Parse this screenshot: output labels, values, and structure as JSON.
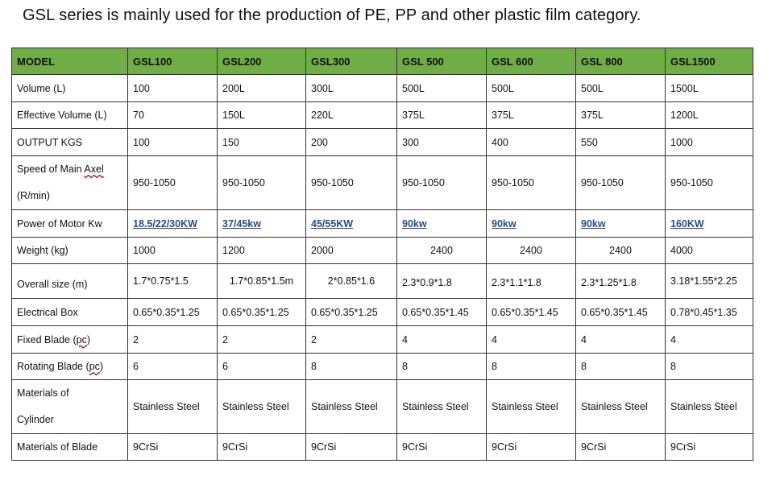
{
  "title": "GSL series is mainly used for the production of PE, PP and other plastic film category.",
  "table": {
    "headers": [
      "MODEL",
      "GSL100",
      "GSL200",
      "GSL300",
      "GSL 500",
      "GSL 600",
      "GSL 800",
      "GSL1500"
    ],
    "rows": [
      {
        "label": "Volume (L)",
        "values": [
          "100",
          "200L",
          "300L",
          "500L",
          "500L",
          "500L",
          "1500L"
        ]
      },
      {
        "label": "Effective Volume (L)",
        "values": [
          "70",
          "150L",
          "220L",
          "375L",
          "375L",
          "375L",
          "1200L"
        ]
      },
      {
        "label": "OUTPUT KGS",
        "values": [
          "100",
          "150",
          "200",
          "300",
          "400",
          "550",
          "1000"
        ]
      },
      {
        "label_pre": "Speed of Main ",
        "label_wavy": "Axel",
        "label_line2": "(R/min)",
        "values": [
          "950-1050",
          "950-1050",
          "950-1050",
          "950-1050",
          "950-1050",
          "950-1050",
          "950-1050"
        ]
      },
      {
        "label": "Power of Motor Kw",
        "values": [
          "18.5/22/30KW",
          "37/45kw",
          "45/55KW",
          "90kw",
          "90kw",
          "90kw",
          "160KW"
        ]
      },
      {
        "label": "Weight (kg)",
        "values": [
          "1000",
          "1200",
          "2000",
          "2400",
          "2400",
          "2400",
          "4000"
        ]
      },
      {
        "label": "Overall size (m)",
        "values": [
          "1.7*0.75*1.5",
          "1.7*0.85*1.5m",
          "2*0.85*1.6",
          "2.3*0.9*1.8",
          "2.3*1.1*1.8",
          "2.3*1.25*1.8",
          "3.18*1.55*2.25"
        ]
      },
      {
        "label": "Electrical Box",
        "values": [
          "0.65*0.35*1.25",
          "0.65*0.35*1.25",
          "0.65*0.35*1.25",
          "0.65*0.35*1.45",
          "0.65*0.35*1.45",
          "0.65*0.35*1.45",
          "0.78*0.45*1.35"
        ]
      },
      {
        "label_pre": "Fixed Blade (",
        "label_wavy": "pc",
        "label_post": ")",
        "values": [
          "2",
          "2",
          "2",
          "4",
          "4",
          "4",
          "4"
        ]
      },
      {
        "label_pre": "Rotating Blade (",
        "label_wavy": "pc",
        "label_post": ")",
        "values": [
          "6",
          "6",
          "8",
          "8",
          "8",
          "8",
          "8"
        ]
      },
      {
        "label": "Materials of",
        "label_line2": "Cylinder",
        "values": [
          "Stainless Steel",
          "Stainless Steel",
          "Stainless Steel",
          "Stainless Steel",
          "Stainless Steel",
          "Stainless Steel",
          "Stainless Steel"
        ]
      },
      {
        "label": "Materials of Blade",
        "values": [
          "9CrSi",
          "9CrSi",
          "9CrSi",
          "9CrSi",
          "9CrSi",
          "9CrSi",
          "9CrSi"
        ]
      }
    ]
  },
  "colors": {
    "header_bg": "#6fae45",
    "link": "#1f4e9f",
    "border": "#333333"
  }
}
